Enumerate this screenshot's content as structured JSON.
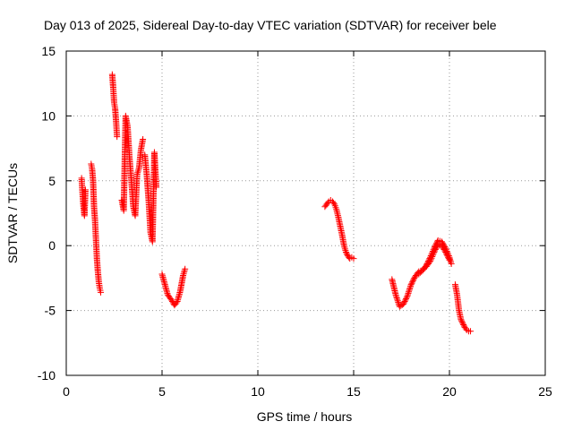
{
  "chart_data": {
    "type": "scatter",
    "title": "Day 013 of 2025, Sidereal Day-to-day VTEC variation (SDTVAR) for receiver bele",
    "xlabel": "GPS time / hours",
    "ylabel": "SDTVAR / TECUs",
    "xlim": [
      0,
      25
    ],
    "ylim": [
      -10,
      15
    ],
    "xticks": [
      0,
      5,
      10,
      15,
      20,
      25
    ],
    "yticks": [
      -10,
      -5,
      0,
      5,
      10,
      15
    ],
    "grid": true,
    "marker": "+",
    "marker_color": "#ff0000",
    "series": [
      {
        "name": "SDTVAR",
        "segments": [
          {
            "x": [
              0.8,
              0.85,
              0.9,
              0.95,
              1.0
            ],
            "y": [
              5.2,
              4.0,
              3.0,
              2.3,
              4.3
            ]
          },
          {
            "x": [
              1.3,
              1.35,
              1.4,
              1.45,
              1.5,
              1.55,
              1.6,
              1.65,
              1.7,
              1.75,
              1.8
            ],
            "y": [
              6.3,
              5.9,
              5.0,
              3.0,
              2.0,
              0.5,
              -1.0,
              -2.0,
              -2.8,
              -3.3,
              -3.6
            ]
          },
          {
            "x": [
              2.4,
              2.45,
              2.5,
              2.55,
              2.6,
              2.65
            ],
            "y": [
              13.2,
              12.2,
              11.0,
              10.6,
              9.6,
              8.4
            ]
          },
          {
            "x": [
              2.9,
              3.0,
              3.1,
              3.2,
              3.3,
              3.4,
              3.5,
              3.6,
              3.7,
              3.8,
              3.9,
              4.0
            ],
            "y": [
              3.5,
              2.7,
              10.0,
              9.2,
              6.8,
              5.0,
              3.0,
              2.3,
              5.5,
              6.0,
              7.4,
              8.2
            ]
          },
          {
            "x": [
              4.1,
              4.2,
              4.3,
              4.4,
              4.5,
              4.6,
              4.7
            ],
            "y": [
              7.0,
              5.5,
              3.5,
              1.0,
              0.3,
              7.2,
              4.5
            ]
          },
          {
            "x": [
              5.0,
              5.15,
              5.3,
              5.5,
              5.65,
              5.8,
              5.95,
              6.1,
              6.2
            ],
            "y": [
              -2.2,
              -3.0,
              -3.8,
              -4.2,
              -4.6,
              -4.3,
              -3.5,
              -2.3,
              -1.8
            ]
          },
          {
            "x": [
              13.5,
              13.6,
              13.7,
              13.8,
              13.9,
              14.0,
              14.1,
              14.2,
              14.3,
              14.4,
              14.5,
              14.6,
              14.7,
              14.8,
              14.9,
              15.0
            ],
            "y": [
              3.0,
              3.2,
              3.4,
              3.5,
              3.4,
              3.2,
              2.8,
              2.2,
              1.5,
              0.8,
              0.0,
              -0.5,
              -0.8,
              -1.0,
              -0.9,
              -1.0
            ]
          },
          {
            "x": [
              17.0,
              17.2,
              17.4,
              17.6,
              17.8,
              18.0,
              18.2,
              18.4,
              18.6,
              18.8,
              19.0,
              19.2,
              19.4,
              19.6,
              19.8,
              20.0,
              20.1
            ],
            "y": [
              -2.6,
              -3.8,
              -4.7,
              -4.5,
              -3.9,
              -3.0,
              -2.4,
              -2.0,
              -1.9,
              -1.5,
              -0.9,
              -0.2,
              0.4,
              0.3,
              -0.2,
              -0.9,
              -1.4
            ]
          },
          {
            "x": [
              18.4,
              18.6,
              18.8,
              19.0,
              19.2,
              19.4,
              19.6,
              19.8,
              20.0
            ],
            "y": [
              -2.2,
              -1.9,
              -1.6,
              -1.2,
              -0.5,
              0.1,
              0.0,
              -0.5,
              -1.1
            ]
          },
          {
            "x": [
              20.3,
              20.4,
              20.5,
              20.6,
              20.7,
              20.8,
              20.9,
              21.0,
              21.1
            ],
            "y": [
              -3.0,
              -3.8,
              -5.0,
              -5.7,
              -6.0,
              -6.3,
              -6.5,
              -6.6,
              -6.6
            ]
          }
        ]
      }
    ]
  }
}
